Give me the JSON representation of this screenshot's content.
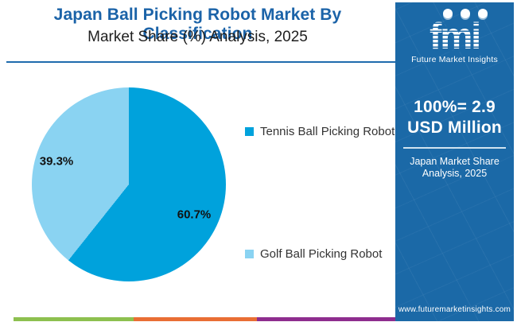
{
  "header": {
    "title": "Japan Ball Picking Robot Market By Classification",
    "subtitle": "Market Share (%) Analysis, 2025"
  },
  "chart_data": {
    "type": "pie",
    "title": "Japan Ball Picking Robot Market By Classification",
    "subtitle": "Market Share (%) Analysis, 2025",
    "slices": [
      {
        "label": "Tennis Ball Picking Robot",
        "value": 60.7,
        "display": "60.7%",
        "color": "#00a2dc"
      },
      {
        "label": "Golf Ball Picking Robot",
        "value": 39.3,
        "display": "39.3%",
        "color": "#8ad3f2"
      }
    ],
    "total_note": "100%= 2.9 USD Million",
    "year": "2025",
    "legend_position": "right",
    "start_angle_deg": 0,
    "direction": "clockwise"
  },
  "sidebar": {
    "bg_color": "#1b69a7",
    "logo": {
      "text": "fmi",
      "tagline": "Future Market Insights"
    },
    "stat": {
      "line1": "100%= 2.9",
      "line2": "USD Million"
    },
    "note": {
      "line1": "Japan Market Share",
      "line2": "Analysis, 2025"
    },
    "website": "www.futuremarketinsights.com"
  },
  "footer": {
    "stripe_colors": [
      "#8dc04f",
      "#e96e34",
      "#8e2d8e"
    ]
  },
  "colors": {
    "title_blue": "#1b63a8",
    "divider_blue": "#1f6cad",
    "pie_label_text": "#111111",
    "legend_text": "#333333"
  }
}
